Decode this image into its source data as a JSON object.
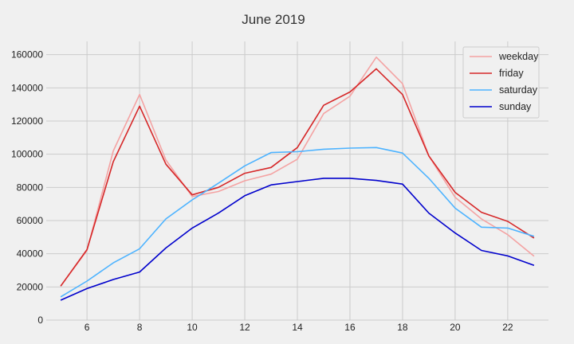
{
  "chart_data": {
    "type": "line",
    "title": "June 2019",
    "xlabel": "",
    "ylabel": "",
    "x": [
      5,
      6,
      7,
      8,
      9,
      10,
      11,
      12,
      13,
      14,
      15,
      16,
      17,
      18,
      19,
      20,
      21,
      22,
      23
    ],
    "xlim": [
      4.45,
      23.55
    ],
    "ylim": [
      0,
      168000
    ],
    "x_ticks": [
      6,
      8,
      10,
      12,
      14,
      16,
      18,
      20,
      22
    ],
    "y_ticks": [
      0,
      20000,
      40000,
      60000,
      80000,
      100000,
      120000,
      140000,
      160000
    ],
    "grid": true,
    "legend_position": "top-right",
    "series": [
      {
        "name": "weekday",
        "color": "#f4a3a3",
        "values": [
          20500,
          42000,
          102000,
          136000,
          96500,
          74500,
          77500,
          84000,
          88000,
          97000,
          124500,
          135000,
          158500,
          142500,
          99000,
          74000,
          61000,
          51500,
          38500
        ]
      },
      {
        "name": "friday",
        "color": "#d62728",
        "values": [
          20500,
          42500,
          95500,
          129000,
          94000,
          75500,
          80000,
          88500,
          92000,
          104000,
          129500,
          137500,
          151500,
          136000,
          99000,
          77000,
          65000,
          59500,
          49500
        ]
      },
      {
        "name": "saturday",
        "color": "#4db3ff",
        "values": [
          14000,
          23500,
          34500,
          43000,
          61000,
          72500,
          82500,
          93000,
          101000,
          101500,
          103000,
          103700,
          104000,
          100700,
          85500,
          67500,
          56000,
          55500,
          50500
        ]
      },
      {
        "name": "sunday",
        "color": "#0000cc",
        "values": [
          12000,
          19000,
          24500,
          29000,
          43500,
          55500,
          64500,
          75000,
          81500,
          83500,
          85500,
          85500,
          84200,
          82000,
          64500,
          52500,
          42000,
          38700,
          33000
        ]
      }
    ]
  }
}
